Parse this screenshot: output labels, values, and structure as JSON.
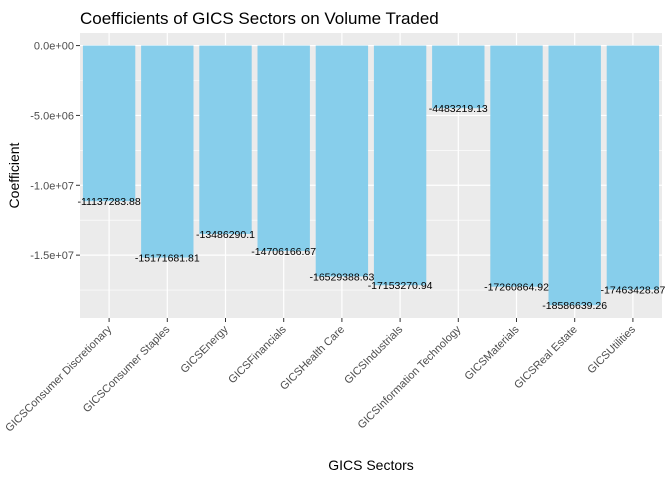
{
  "chart_data": {
    "type": "bar",
    "title": "Coefficients of GICS Sectors on Volume Traded",
    "xlabel": "GICS Sectors",
    "ylabel": "Coefficient",
    "categories": [
      "GICSConsumer Discretionary",
      "GICSConsumer Staples",
      "GICSEnergy",
      "GICSFinancials",
      "GICSHealth Care",
      "GICSIndustrials",
      "GICSInformation Technology",
      "GICSMaterials",
      "GICSReal Estate",
      "GICSUtilities"
    ],
    "values": [
      -11137283.88,
      -15171681.81,
      -13486290.1,
      -14706166.67,
      -16529388.63,
      -17153270.94,
      -4483219.13,
      -17260864.92,
      -18586639.26,
      -17463428.87
    ],
    "data_labels": [
      "-11137283.88",
      "-15171681.81",
      "-13486290.1",
      "-14706166.67",
      "-16529388.63",
      "-17153270.94",
      "-4483219.13",
      "-17260864.92",
      "-18586639.26",
      "-17463428.87"
    ],
    "yticks": [
      0,
      -5000000,
      -10000000,
      -15000000
    ],
    "ytick_labels": [
      "0.0e+00",
      "-5.0e+06",
      "-1.0e+07",
      "-1.5e+07"
    ],
    "ylim": [
      -19500000,
      900000
    ],
    "grid": true,
    "bar_color": "#87ceeb",
    "panel_color": "#ebebeb",
    "grid_color": "#ffffff"
  }
}
